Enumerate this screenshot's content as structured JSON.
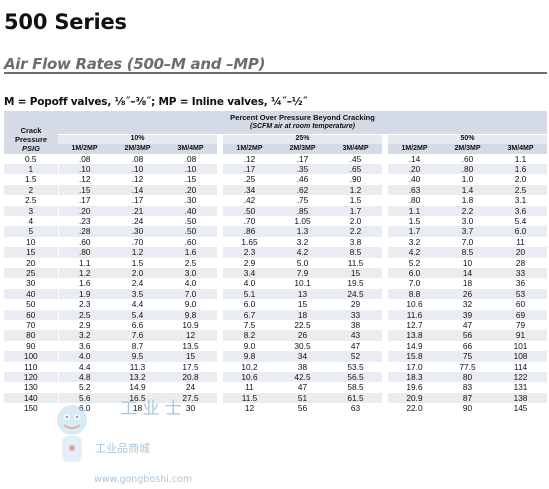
{
  "title": "500 Series",
  "subtitle": "Air Flow Rates (500–M and –MP)",
  "note": "M = Popoff valves, ⅛˝–⅜˝; MP = Inline valves, ¼˝–½˝",
  "table": {
    "crack_label_1": "Crack",
    "crack_label_2": "Pressure",
    "crack_unit": "PSIG",
    "percent_header": "Percent Over Pressure Beyond Cracking",
    "percent_sub": "(SCFM air at room temperature)",
    "groups": [
      "10%",
      "25%",
      "50%"
    ],
    "cols": [
      "1M/2MP",
      "2M/3MP",
      "3M/4MP",
      "1M/2MP",
      "2M/3MP",
      "3M/4MP",
      "1M/2MP",
      "2M/3MP",
      "3M/4MP"
    ],
    "rows": [
      [
        "0.5",
        ".08",
        ".08",
        ".08",
        ".12",
        ".17",
        ".45",
        ".14",
        ".60",
        "1.1"
      ],
      [
        "1",
        ".10",
        ".10",
        ".10",
        ".17",
        ".35",
        ".65",
        ".20",
        ".80",
        "1.6"
      ],
      [
        "1.5",
        ".12",
        ".12",
        ".15",
        ".25",
        ".46",
        ".90",
        ".40",
        "1.0",
        "2.0"
      ],
      [
        "2",
        ".15",
        ".14",
        ".20",
        ".34",
        ".62",
        "1.2",
        ".63",
        "1.4",
        "2.5"
      ],
      [
        "2.5",
        ".17",
        ".17",
        ".30",
        ".42",
        ".75",
        "1.5",
        ".80",
        "1.8",
        "3.1"
      ],
      [
        "3",
        ".20",
        ".21",
        ".40",
        ".50",
        ".85",
        "1.7",
        "1.1",
        "2.2",
        "3.6"
      ],
      [
        "4",
        ".23",
        ".24",
        ".50",
        ".70",
        "1.05",
        "2.0",
        "1.5",
        "3.0",
        "5.4"
      ],
      [
        "5",
        ".28",
        ".30",
        ".50",
        ".86",
        "1.3",
        "2.2",
        "1.7",
        "3.7",
        "6.0"
      ],
      [
        "10",
        ".60",
        ".70",
        ".60",
        "1.65",
        "3.2",
        "3.8",
        "3.2",
        "7.0",
        "11"
      ],
      [
        "15",
        ".80",
        "1.2",
        "1.6",
        "2.3",
        "4.2",
        "8.5",
        "4.2",
        "8.5",
        "20"
      ],
      [
        "20",
        "1.1",
        "1.5",
        "2.5",
        "2.9",
        "5.0",
        "11.5",
        "5.2",
        "10",
        "28"
      ],
      [
        "25",
        "1.2",
        "2.0",
        "3.0",
        "3.4",
        "7.9",
        "15",
        "6.0",
        "14",
        "33"
      ],
      [
        "30",
        "1.6",
        "2.4",
        "4.0",
        "4.0",
        "10.1",
        "19.5",
        "7.0",
        "18",
        "36"
      ],
      [
        "40",
        "1.9",
        "3.5",
        "7.0",
        "5.1",
        "13",
        "24.5",
        "8.8",
        "26",
        "53"
      ],
      [
        "50",
        "2.3",
        "4.4",
        "9.0",
        "6.0",
        "15",
        "29",
        "10.6",
        "32",
        "60"
      ],
      [
        "60",
        "2.5",
        "5.4",
        "9.8",
        "6.7",
        "18",
        "33",
        "11.6",
        "39",
        "69"
      ],
      [
        "70",
        "2.9",
        "6.6",
        "10.9",
        "7.5",
        "22.5",
        "38",
        "12.7",
        "47",
        "79"
      ],
      [
        "80",
        "3.2",
        "7.6",
        "12",
        "8.2",
        "26",
        "43",
        "13.8",
        "56",
        "91"
      ],
      [
        "90",
        "3.6",
        "8.7",
        "13.5",
        "9.0",
        "30.5",
        "47",
        "14.9",
        "66",
        "101"
      ],
      [
        "100",
        "4.0",
        "9.5",
        "15",
        "9.8",
        "34",
        "52",
        "15.8",
        "75",
        "108"
      ],
      [
        "110",
        "4.4",
        "11.3",
        "17.5",
        "10.2",
        "38",
        "53.5",
        "17.0",
        "77.5",
        "114"
      ],
      [
        "120",
        "4.8",
        "13.2",
        "20.8",
        "10.6",
        "42.5",
        "56.5",
        "18.3",
        "80",
        "122"
      ],
      [
        "130",
        "5.2",
        "14.9",
        "24",
        "11",
        "47",
        "58.5",
        "19.6",
        "83",
        "131"
      ],
      [
        "140",
        "5.6",
        "16.5",
        "27.5",
        "11.5",
        "51",
        "61.5",
        "20.9",
        "87",
        "138"
      ],
      [
        "150",
        "6.0",
        "18",
        "30",
        "12",
        "56",
        "63",
        "22.0",
        "90",
        "145"
      ]
    ]
  },
  "watermark": {
    "text_cn": "工 业 士",
    "text_cn2": "工业品商城",
    "url": "www.gongboshi.com"
  }
}
